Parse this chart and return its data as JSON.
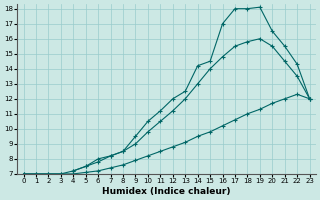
{
  "xlabel": "Humidex (Indice chaleur)",
  "background_color": "#cce8e4",
  "grid_color": "#99cccc",
  "line_color": "#006666",
  "xlim": [
    -0.5,
    23.5
  ],
  "ylim": [
    7,
    18.3
  ],
  "xticks": [
    0,
    1,
    2,
    3,
    4,
    5,
    6,
    7,
    8,
    9,
    10,
    11,
    12,
    13,
    14,
    15,
    16,
    17,
    18,
    19,
    20,
    21,
    22,
    23
  ],
  "yticks": [
    7,
    8,
    9,
    10,
    11,
    12,
    13,
    14,
    15,
    16,
    17,
    18
  ],
  "curve1_x": [
    0,
    1,
    2,
    3,
    4,
    5,
    6,
    7,
    8,
    9,
    10,
    11,
    12,
    13,
    14,
    15,
    16,
    17,
    18,
    19,
    20,
    21,
    22,
    23
  ],
  "curve1_y": [
    7.0,
    7.0,
    7.0,
    7.0,
    7.0,
    7.1,
    7.2,
    7.4,
    7.6,
    7.9,
    8.2,
    8.5,
    8.8,
    9.1,
    9.5,
    9.8,
    10.2,
    10.6,
    11.0,
    11.3,
    11.7,
    12.0,
    12.3,
    12.0
  ],
  "curve2_x": [
    0,
    1,
    2,
    3,
    4,
    5,
    6,
    7,
    8,
    9,
    10,
    11,
    12,
    13,
    14,
    15,
    16,
    17,
    18,
    19,
    20,
    21,
    22,
    23
  ],
  "curve2_y": [
    7.0,
    7.0,
    7.0,
    7.0,
    7.2,
    7.5,
    7.8,
    8.2,
    8.5,
    9.0,
    9.8,
    10.5,
    11.2,
    12.0,
    13.0,
    14.0,
    14.8,
    15.5,
    15.8,
    16.0,
    15.5,
    14.5,
    13.5,
    12.0
  ],
  "curve3_x": [
    4,
    5,
    6,
    7,
    8,
    9,
    10,
    11,
    12,
    13,
    14,
    15,
    16,
    17,
    18,
    19,
    20,
    21,
    22,
    23
  ],
  "curve3_y": [
    7.2,
    7.5,
    8.0,
    8.2,
    8.5,
    9.5,
    10.5,
    11.2,
    12.0,
    12.5,
    14.2,
    14.5,
    17.0,
    18.0,
    18.0,
    18.1,
    16.5,
    15.5,
    14.3,
    12.0
  ]
}
